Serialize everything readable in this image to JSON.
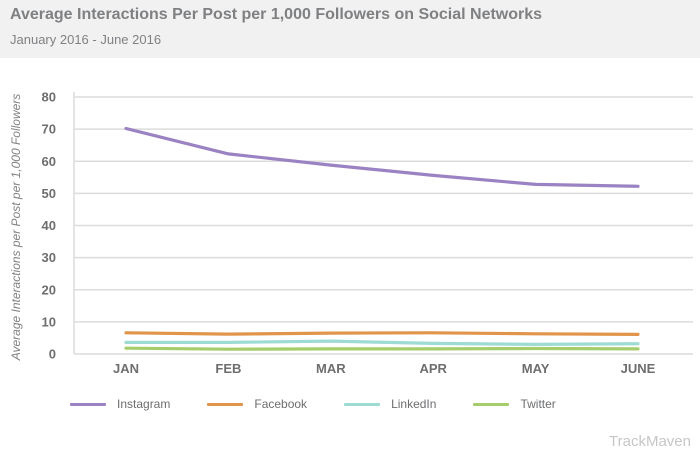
{
  "header": {
    "title": "Average Interactions Per Post per 1,000 Followers on Social Networks",
    "subtitle": "January 2016 - June 2016"
  },
  "watermark": "TrackMaven",
  "chart_data": {
    "type": "line",
    "categories": [
      "JAN",
      "FEB",
      "MAR",
      "APR",
      "MAY",
      "JUNE"
    ],
    "ylabel": "Average Interactions per Post per 1,000 Followers",
    "xlabel": "",
    "ylim": [
      0,
      80
    ],
    "yticks": [
      0,
      10,
      20,
      30,
      40,
      50,
      60,
      70,
      80
    ],
    "grid": true,
    "legend_position": "bottom-left",
    "series": [
      {
        "name": "Instagram",
        "color": "#9b82c3",
        "values": [
          70.2,
          62.3,
          58.8,
          55.6,
          52.8,
          52.2
        ]
      },
      {
        "name": "Facebook",
        "color": "#e0954b",
        "values": [
          6.6,
          6.2,
          6.5,
          6.6,
          6.3,
          6.1
        ]
      },
      {
        "name": "LinkedIn",
        "color": "#9ddbd3",
        "values": [
          3.6,
          3.6,
          4.0,
          3.3,
          3.0,
          3.2
        ]
      },
      {
        "name": "Twitter",
        "color": "#a6cd6c",
        "values": [
          1.8,
          1.5,
          1.6,
          1.6,
          1.7,
          1.6
        ]
      }
    ]
  }
}
